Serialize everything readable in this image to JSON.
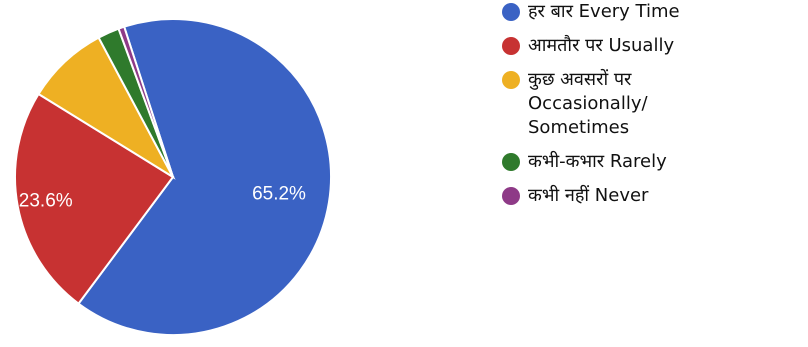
{
  "chart_data": {
    "type": "pie",
    "slices": [
      {
        "label": "हर बार Every Time",
        "value": 65.2,
        "color": "#3a62c4",
        "display_label": "65.2%"
      },
      {
        "label": "आमतौर पर Usually",
        "value": 23.6,
        "color": "#c73232",
        "display_label": "23.6%"
      },
      {
        "label": "कुछ अवसरों पर Occasionally/ Sometimes",
        "value": 8.4,
        "color": "#eeb023",
        "display_label": ""
      },
      {
        "label": "कभी-कभार Rarely",
        "value": 2.2,
        "color": "#2f7a2c",
        "display_label": ""
      },
      {
        "label": "कभी नहीं Never",
        "value": 0.6,
        "color": "#8e3a87",
        "display_label": ""
      }
    ],
    "legend": "right"
  }
}
